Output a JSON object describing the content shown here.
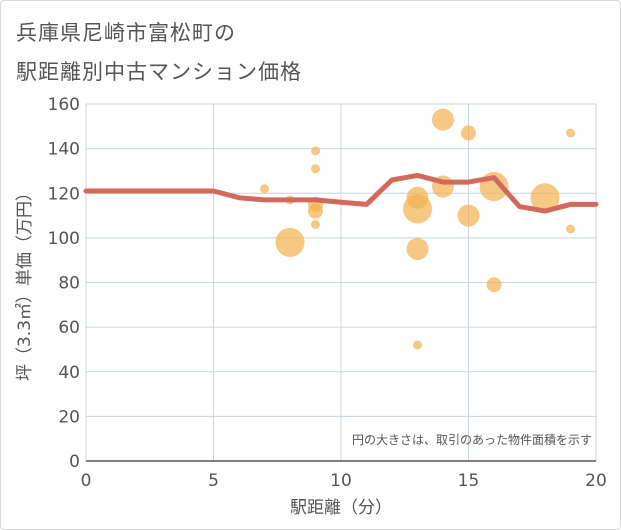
{
  "title_lines": [
    "兵庫県尼崎市富松町の",
    "駅距離別中古マンション価格"
  ],
  "note": "円の大きさは、取引のあった物件面積を示す",
  "chart_data": {
    "type": "scatter",
    "title": "兵庫県尼崎市富松町の駅距離別中古マンション価格",
    "xlabel": "駅距離（分）",
    "ylabel": "坪（3.3㎡）単価（万円）",
    "xlim": [
      0,
      20
    ],
    "ylim": [
      0,
      160
    ],
    "x_ticks": [
      0,
      5,
      10,
      15,
      20
    ],
    "y_ticks": [
      0,
      20,
      40,
      60,
      80,
      100,
      120,
      140,
      160
    ],
    "grid": true,
    "colors": {
      "bubble": "#f2b04f",
      "trend": "#d2695a",
      "axis_text": "#555555",
      "grid": "#c8d4de"
    },
    "points": [
      {
        "x": 7,
        "y": 122,
        "size": 1
      },
      {
        "x": 8,
        "y": 117,
        "size": 1
      },
      {
        "x": 8,
        "y": 98,
        "size": 4
      },
      {
        "x": 9,
        "y": 139,
        "size": 1
      },
      {
        "x": 9,
        "y": 131,
        "size": 1
      },
      {
        "x": 9,
        "y": 115,
        "size": 2
      },
      {
        "x": 9,
        "y": 112,
        "size": 2
      },
      {
        "x": 9,
        "y": 106,
        "size": 1
      },
      {
        "x": 13,
        "y": 118,
        "size": 3
      },
      {
        "x": 13,
        "y": 113,
        "size": 4
      },
      {
        "x": 13,
        "y": 95,
        "size": 3
      },
      {
        "x": 13,
        "y": 52,
        "size": 1
      },
      {
        "x": 14,
        "y": 153,
        "size": 3
      },
      {
        "x": 14,
        "y": 123,
        "size": 3
      },
      {
        "x": 15,
        "y": 147,
        "size": 2
      },
      {
        "x": 15,
        "y": 110,
        "size": 3
      },
      {
        "x": 16,
        "y": 123,
        "size": 4
      },
      {
        "x": 16,
        "y": 79,
        "size": 2
      },
      {
        "x": 18,
        "y": 118,
        "size": 4
      },
      {
        "x": 19,
        "y": 147,
        "size": 1
      },
      {
        "x": 19,
        "y": 104,
        "size": 1
      }
    ],
    "trend_line": {
      "x": [
        0,
        5,
        6,
        7,
        8,
        9,
        10,
        11,
        12,
        13,
        14,
        15,
        16,
        17,
        18,
        19,
        20
      ],
      "y": [
        121,
        121,
        118,
        117,
        117,
        117,
        116,
        115,
        126,
        128,
        125,
        125,
        127,
        114,
        112,
        115,
        115
      ]
    }
  }
}
